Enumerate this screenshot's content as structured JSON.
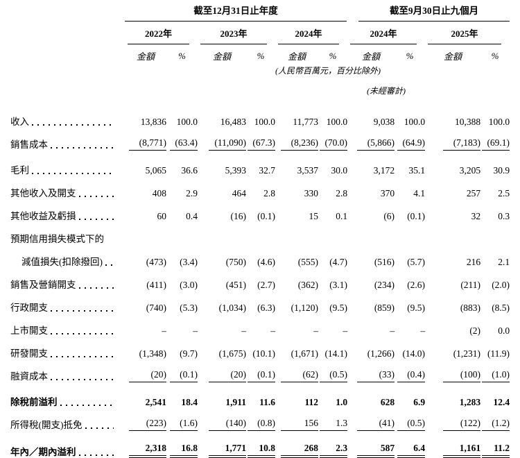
{
  "table": {
    "groups": [
      {
        "title": "截至12月31日止年度"
      },
      {
        "title": "截至9月30日止九個月"
      }
    ],
    "years": [
      "2022年",
      "2023年",
      "2024年",
      "2024年",
      "2025年"
    ],
    "sub_headers": {
      "amount": "金額",
      "percent": "%"
    },
    "notes": {
      "units": "(人民幣百萬元，百分比除外)",
      "unaudited": "(未經審計)"
    },
    "rows": [
      {
        "label": "收入",
        "leader": true,
        "values": [
          "13,836",
          "100.0",
          "16,483",
          "100.0",
          "11,773",
          "100.0",
          "9,038",
          "100.0",
          "10,388",
          "100.0"
        ]
      },
      {
        "label": "銷售成本",
        "leader": true,
        "underline": "single",
        "values": [
          "(8,771)",
          "(63.4)",
          "(11,090)",
          "(67.3)",
          "(8,236)",
          "(70.0)",
          "(5,866)",
          "(64.9)",
          "(7,183)",
          "(69.1)"
        ]
      },
      {
        "label": "毛利",
        "leader": true,
        "gap_top": true,
        "values": [
          "5,065",
          "36.6",
          "5,393",
          "32.7",
          "3,537",
          "30.0",
          "3,172",
          "35.1",
          "3,205",
          "30.9"
        ]
      },
      {
        "label": "其他收入及開支",
        "leader": true,
        "values": [
          "408",
          "2.9",
          "464",
          "2.8",
          "330",
          "2.8",
          "370",
          "4.1",
          "257",
          "2.5"
        ]
      },
      {
        "label": "其他收益及虧損",
        "leader": true,
        "values": [
          "60",
          "0.4",
          "(16)",
          "(0.1)",
          "15",
          "0.1",
          "(6)",
          "(0.1)",
          "32",
          "0.3"
        ]
      },
      {
        "label": "預期信用損失模式下的",
        "leader": false,
        "values": [
          "",
          "",
          "",
          "",
          "",
          "",
          "",
          "",
          "",
          ""
        ]
      },
      {
        "label": "減值損失(扣除撥回)",
        "leader": true,
        "indent": true,
        "values": [
          "(473)",
          "(3.4)",
          "(750)",
          "(4.6)",
          "(555)",
          "(4.7)",
          "(516)",
          "(5.7)",
          "216",
          "2.1"
        ]
      },
      {
        "label": "銷售及營銷開支",
        "leader": true,
        "values": [
          "(411)",
          "(3.0)",
          "(451)",
          "(2.7)",
          "(362)",
          "(3.1)",
          "(234)",
          "(2.6)",
          "(211)",
          "(2.0)"
        ]
      },
      {
        "label": "行政開支",
        "leader": true,
        "values": [
          "(740)",
          "(5.3)",
          "(1,034)",
          "(6.3)",
          "(1,120)",
          "(9.5)",
          "(859)",
          "(9.5)",
          "(883)",
          "(8.5)"
        ]
      },
      {
        "label": "上市開支",
        "leader": true,
        "values": [
          "–",
          "–",
          "–",
          "–",
          "–",
          "–",
          "–",
          "–",
          "(2)",
          "0.0"
        ]
      },
      {
        "label": "研發開支",
        "leader": true,
        "values": [
          "(1,348)",
          "(9.7)",
          "(1,675)",
          "(10.1)",
          "(1,671)",
          "(14.1)",
          "(1,266)",
          "(14.0)",
          "(1,231)",
          "(11.9)"
        ]
      },
      {
        "label": "融資成本",
        "leader": true,
        "underline": "single",
        "values": [
          "(20)",
          "(0.1)",
          "(20)",
          "(0.1)",
          "(62)",
          "(0.5)",
          "(33)",
          "(0.4)",
          "(100)",
          "(1.0)"
        ]
      },
      {
        "label": "除稅前溢利",
        "leader": true,
        "bold": true,
        "gap_top": true,
        "values": [
          "2,541",
          "18.4",
          "1,911",
          "11.6",
          "112",
          "1.0",
          "628",
          "6.9",
          "1,283",
          "12.4"
        ]
      },
      {
        "label": "所得稅(開支)抵免",
        "leader": true,
        "underline": "single",
        "values": [
          "(223)",
          "(1.6)",
          "(140)",
          "(0.8)",
          "156",
          "1.3",
          "(41)",
          "(0.5)",
          "(122)",
          "(1.2)"
        ]
      },
      {
        "label": "年內／期內溢利",
        "leader": true,
        "bold": true,
        "gap_top": true,
        "underline": "double",
        "values": [
          "2,318",
          "16.8",
          "1,771",
          "10.8",
          "268",
          "2.3",
          "587",
          "6.4",
          "1,161",
          "11.2"
        ]
      }
    ]
  }
}
